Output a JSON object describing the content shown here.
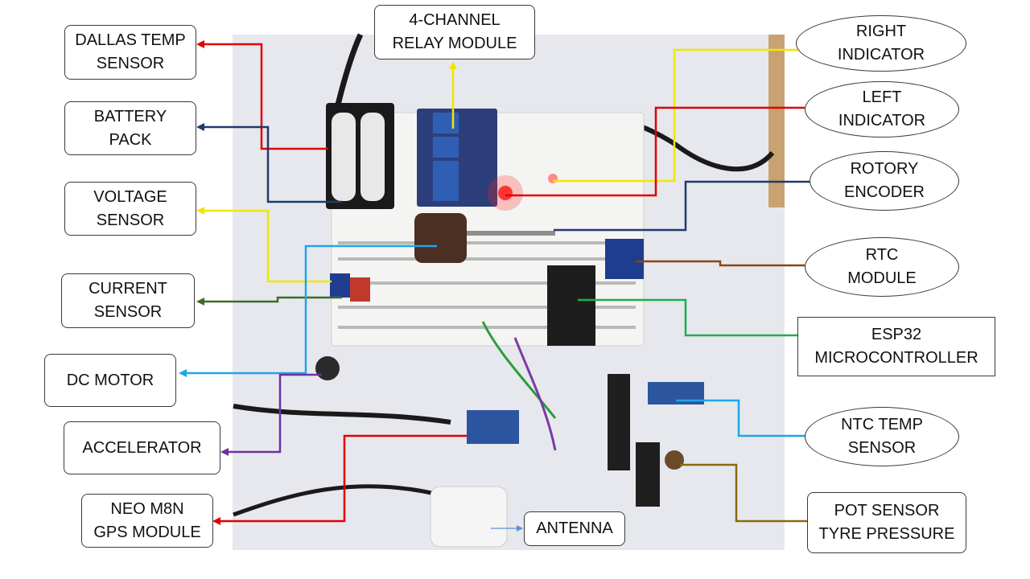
{
  "labels": {
    "dallas": "DALLAS TEMP\nSENSOR",
    "battery": "BATTERY\nPACK",
    "voltage": "VOLTAGE\nSENSOR",
    "current": "CURRENT\nSENSOR",
    "motor": "DC MOTOR",
    "accelerator": "ACCELERATOR",
    "gps": "NEO M8N\nGPS MODULE",
    "relay": "4-CHANNEL\nRELAY MODULE",
    "antenna": "ANTENNA",
    "right_indicator": "RIGHT\nINDICATOR",
    "left_indicator": "LEFT\nINDICATOR",
    "encoder": "ROTORY\nENCODER",
    "rtc": "RTC\nMODULE",
    "esp32": "ESP32\nMICROCONTROLLER",
    "ntc": "NTC TEMP\nSENSOR",
    "pot": "POT SENSOR\nTYRE PRESSURE"
  },
  "colors": {
    "red": "#e00000",
    "navy": "#1f3a6e",
    "yellow": "#f2e600",
    "green_dark": "#3d6b2a",
    "cyan": "#1ea5e8",
    "purple": "#7030a0",
    "green": "#1fae4b",
    "brown": "#8b4513",
    "olive_brown": "#8a6a10",
    "blue_thin": "#5b8fd6"
  }
}
